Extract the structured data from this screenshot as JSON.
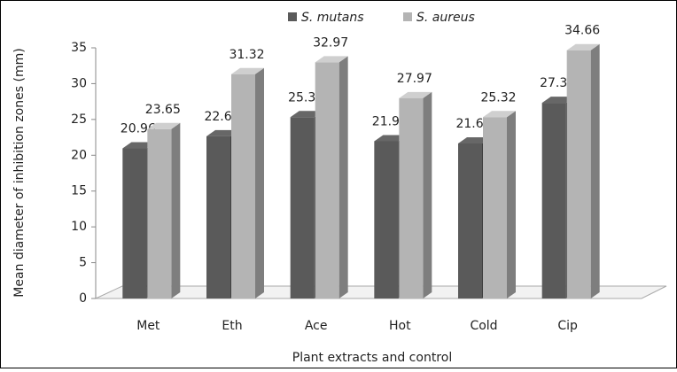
{
  "chart_data": {
    "type": "bar",
    "y_label": "Mean diameter of inhibition zones (mm)",
    "x_label": "Plant extracts and control",
    "categories": [
      "Met",
      "Eth",
      "Ace",
      "Hot",
      "Cold",
      "Cip"
    ],
    "series": [
      {
        "name": "S. mutans",
        "color": "#5a5a5a",
        "values": [
          20.96,
          22.65,
          25.32,
          21.96,
          21.65,
          27.32
        ]
      },
      {
        "name": "S. aureus",
        "color": "#b4b4b4",
        "values": [
          23.65,
          31.32,
          32.97,
          27.97,
          25.32,
          34.66
        ]
      }
    ],
    "ylim": [
      0,
      35
    ],
    "yticks": [
      0,
      5,
      10,
      15,
      20,
      25,
      30,
      35
    ],
    "grid": false,
    "legend": "top"
  }
}
